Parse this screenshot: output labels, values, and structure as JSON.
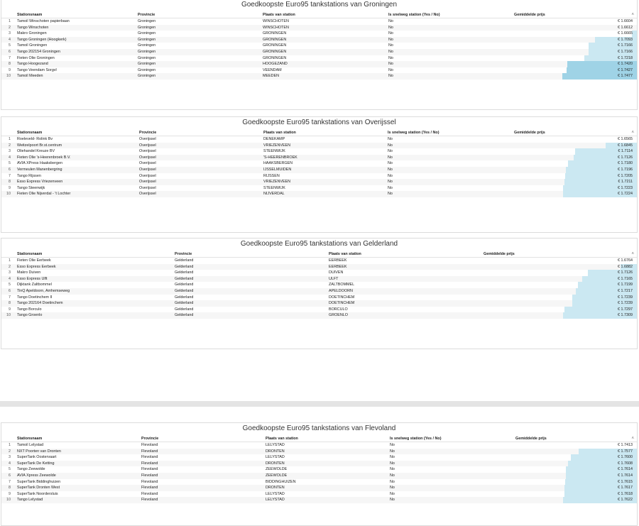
{
  "columns": {
    "num": "",
    "station": "Stationsnaam",
    "provincie": "Provincie",
    "plaats": "Plaats van station",
    "snelweg": "Is snelweg station (Yes / No)",
    "prijs": "Gemiddelde prijs"
  },
  "colors": {
    "bar": "#cbe8f2",
    "bar_dark": "#9fd3e6"
  },
  "tables": [
    {
      "title": "Goedkoopste Euro95 tankstations van Groningen",
      "bar_min": 1.6604,
      "bar_max": 1.7477,
      "rows": [
        {
          "n": "1",
          "station": "Tamoil Winschoten papierbaan",
          "provincie": "Groningen",
          "plaats": "WINSCHOTEN",
          "snelweg": "No",
          "prijs": "€ 1.6604",
          "v": 1.6604
        },
        {
          "n": "2",
          "station": "Tango Winschoten",
          "provincie": "Groningen",
          "plaats": "WINSCHOTEN",
          "snelweg": "No",
          "prijs": "€ 1.6612",
          "v": 1.6612
        },
        {
          "n": "3",
          "station": "Makro Groningen",
          "provincie": "Groningen",
          "plaats": "GRONINGEN",
          "snelweg": "No",
          "prijs": "€ 1.6665",
          "v": 1.6665
        },
        {
          "n": "4",
          "station": "Tango Groningen (Hoogkerk)",
          "provincie": "Groningen",
          "plaats": "GRONINGEN",
          "snelweg": "No",
          "prijs": "€ 1.7093",
          "v": 1.7093
        },
        {
          "n": "5",
          "station": "Tamoil Groningen",
          "provincie": "Groningen",
          "plaats": "GRONINGEN",
          "snelweg": "No",
          "prijs": "€ 1.7166",
          "v": 1.7166
        },
        {
          "n": "6",
          "station": "Tango 202154 Groningen",
          "provincie": "Groningen",
          "plaats": "GRONINGEN",
          "snelweg": "No",
          "prijs": "€ 1.7166",
          "v": 1.7166
        },
        {
          "n": "7",
          "station": "Fieten Olie Groningen",
          "provincie": "Groningen",
          "plaats": "GRONINGEN",
          "snelweg": "No",
          "prijs": "€ 1.7218",
          "v": 1.7218
        },
        {
          "n": "8",
          "station": "Tango Hoogezand",
          "provincie": "Groningen",
          "plaats": "HOOGEZAND",
          "snelweg": "No",
          "prijs": "€ 1.7420",
          "v": 1.742
        },
        {
          "n": "9",
          "station": "Tango Veendam Sorgvl",
          "provincie": "Groningen",
          "plaats": "VEENDAM",
          "snelweg": "No",
          "prijs": "€ 1.7427",
          "v": 1.7427
        },
        {
          "n": "10",
          "station": "Tamoil Meeden",
          "provincie": "Groningen",
          "plaats": "MEEDEN",
          "snelweg": "No",
          "prijs": "€ 1.7477",
          "v": 1.7477
        }
      ]
    },
    {
      "title": "Goedkoopste Euro95 tankstations van Overijssel",
      "bar_min": 1.6565,
      "bar_max": 1.7224,
      "rows": [
        {
          "n": "1",
          "station": "Roeleveld- Rolink Bv",
          "provincie": "Overijssel",
          "plaats": "DENEKAMP",
          "snelweg": "No",
          "prijs": "€ 1.6565",
          "v": 1.6565
        },
        {
          "n": "2",
          "station": "Weitzelpoort Br.st.centrum",
          "provincie": "Overijssel",
          "plaats": "VRIEZENVEEN",
          "snelweg": "No",
          "prijs": "€ 1.6845",
          "v": 1.6845
        },
        {
          "n": "3",
          "station": "Oliehandel Kreuze BV",
          "provincie": "Overijssel",
          "plaats": "STEENWIJK",
          "snelweg": "No",
          "prijs": "€ 1.7114",
          "v": 1.7114
        },
        {
          "n": "4",
          "station": "Fieten Olie 's-Heerenbroek B.V.",
          "provincie": "Overijssel",
          "plaats": "'S-HEERENBROEK",
          "snelweg": "No",
          "prijs": "€ 1.7126",
          "v": 1.7126
        },
        {
          "n": "5",
          "station": "AVIA XPress Haaksbergen",
          "provincie": "Overijssel",
          "plaats": "HAAKSBERGEN",
          "snelweg": "No",
          "prijs": "€ 1.7180",
          "v": 1.718
        },
        {
          "n": "6",
          "station": "Vermeulen Manenbergring",
          "provincie": "Overijssel",
          "plaats": "IJSSELMUIDEN",
          "snelweg": "No",
          "prijs": "€ 1.7196",
          "v": 1.7196
        },
        {
          "n": "7",
          "station": "Tango Rijssen",
          "provincie": "Overijssel",
          "plaats": "RIJSSEN",
          "snelweg": "No",
          "prijs": "€ 1.7205",
          "v": 1.7205
        },
        {
          "n": "8",
          "station": "Esso Express Vriezenveen",
          "provincie": "Overijssel",
          "plaats": "VRIEZENVEEN",
          "snelweg": "No",
          "prijs": "€ 1.7211",
          "v": 1.7211
        },
        {
          "n": "9",
          "station": "Tango Steenwijk",
          "provincie": "Overijssel",
          "plaats": "STEENWIJK",
          "snelweg": "No",
          "prijs": "€ 1.7223",
          "v": 1.7223
        },
        {
          "n": "10",
          "station": "Fieten Olie Nijverdal - 't Lochter",
          "provincie": "Overijssel",
          "plaats": "NIJVERDAL",
          "snelweg": "No",
          "prijs": "€ 1.7224",
          "v": 1.7224
        }
      ]
    },
    {
      "title": "Goedkoopste Euro95 tankstations van Gelderland",
      "bar_min": 1.6764,
      "bar_max": 1.7309,
      "rows": [
        {
          "n": "1",
          "station": "Fieten Olie Eerbeek",
          "provincie": "Gelderland",
          "plaats": "EERBEEK",
          "prijs": "€ 1.6764",
          "v": 1.6764
        },
        {
          "n": "2",
          "station": "Esso Express Eerbeek",
          "provincie": "Gelderland",
          "plaats": "EERBEEK",
          "prijs": "€ 1.6882",
          "v": 1.6882
        },
        {
          "n": "3",
          "station": "Makro Duiven",
          "provincie": "Gelderland",
          "plaats": "DUIVEN",
          "prijs": "€ 1.7126",
          "v": 1.7126
        },
        {
          "n": "4",
          "station": "Esso Express Ulft",
          "provincie": "Gelderland",
          "plaats": "ULFT",
          "prijs": "€ 1.7165",
          "v": 1.7165
        },
        {
          "n": "5",
          "station": "Dijktank Zaltbommel",
          "provincie": "Gelderland",
          "plaats": "ZALTBOMMEL",
          "prijs": "€ 1.7199",
          "v": 1.7199
        },
        {
          "n": "6",
          "station": "TinQ Apeldoorn, Amhemseweg",
          "provincie": "Gelderland",
          "plaats": "APELDOORN",
          "prijs": "€ 1.7217",
          "v": 1.7217
        },
        {
          "n": "7",
          "station": "Tango Doetinchem II",
          "provincie": "Gelderland",
          "plaats": "DOETINCHEM",
          "prijs": "€ 1.7239",
          "v": 1.7239
        },
        {
          "n": "8",
          "station": "Tango 202164 Doetinchem",
          "provincie": "Gelderland",
          "plaats": "DOETINCHEM",
          "prijs": "€ 1.7239",
          "v": 1.7239
        },
        {
          "n": "9",
          "station": "Tango Borculo",
          "provincie": "Gelderland",
          "plaats": "BORCULO",
          "prijs": "€ 1.7297",
          "v": 1.7297
        },
        {
          "n": "10",
          "station": "Tango Groenlo",
          "provincie": "Gelderland",
          "plaats": "GROENLO",
          "prijs": "€ 1.7309",
          "v": 1.7309
        }
      ]
    },
    {
      "title": "Goedkoopste Euro95 tankstations van Flevoland",
      "bar_min": 1.7413,
      "bar_max": 1.7622,
      "rows": [
        {
          "n": "1",
          "station": "Tamoil Lelystad",
          "provincie": "Flevoland",
          "plaats": "LELYSTAD",
          "snelweg": "No",
          "prijs": "€ 1.7413",
          "v": 1.7413
        },
        {
          "n": "2",
          "station": "NXT Poorten van Dronten",
          "provincie": "Flevoland",
          "plaats": "DRONTEN",
          "snelweg": "No",
          "prijs": "€ 1.7577",
          "v": 1.7577
        },
        {
          "n": "3",
          "station": "SuperTank Oostervaart",
          "provincie": "Flevoland",
          "plaats": "LELYSTAD",
          "snelweg": "No",
          "prijs": "€ 1.7600",
          "v": 1.76
        },
        {
          "n": "4",
          "station": "SuperTank De Ketting",
          "provincie": "Flevoland",
          "plaats": "DRONTEN",
          "snelweg": "No",
          "prijs": "€ 1.7608",
          "v": 1.7608
        },
        {
          "n": "5",
          "station": "Tango Zeewolde",
          "provincie": "Flevoland",
          "plaats": "ZEEWOLDE",
          "snelweg": "No",
          "prijs": "€ 1.7614",
          "v": 1.7614
        },
        {
          "n": "6",
          "station": "AVIA Xpress Zeewolde",
          "provincie": "Flevoland",
          "plaats": "ZEEWOLDE",
          "snelweg": "No",
          "prijs": "€ 1.7614",
          "v": 1.7614
        },
        {
          "n": "7",
          "station": "SuperTank Biddinghuizen",
          "provincie": "Flevoland",
          "plaats": "BIDDINGHUIZEN",
          "snelweg": "No",
          "prijs": "€ 1.7615",
          "v": 1.7615
        },
        {
          "n": "8",
          "station": "SuperTank Dronten West",
          "provincie": "Flevoland",
          "plaats": "DRONTEN",
          "snelweg": "No",
          "prijs": "€ 1.7617",
          "v": 1.7617
        },
        {
          "n": "9",
          "station": "SuperTank Noordersluis",
          "provincie": "Flevoland",
          "plaats": "LELYSTAD",
          "snelweg": "No",
          "prijs": "€ 1.7618",
          "v": 1.7618
        },
        {
          "n": "10",
          "station": "Tango Lelystad",
          "provincie": "Flevoland",
          "plaats": "LELYSTAD",
          "snelweg": "No",
          "prijs": "€ 1.7622",
          "v": 1.7622
        }
      ]
    }
  ]
}
